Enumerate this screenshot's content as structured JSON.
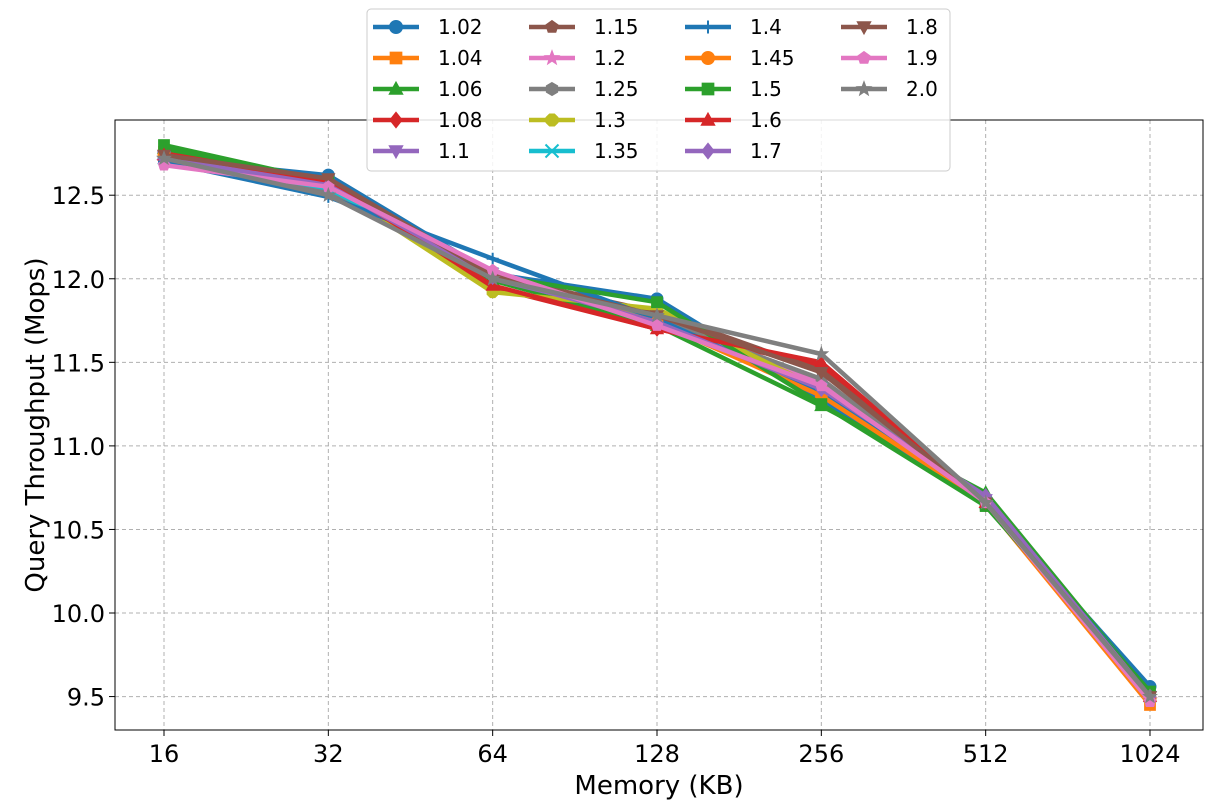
{
  "chart_data": {
    "type": "line",
    "title": "",
    "xlabel": "Memory (KB)",
    "ylabel": "Query Throughput (Mops)",
    "x_scale": "log2",
    "categories": [
      "16",
      "32",
      "64",
      "128",
      "256",
      "512",
      "1024"
    ],
    "ylim": [
      9.3,
      12.95
    ],
    "yticks": [
      "9.5",
      "10.0",
      "10.5",
      "11.0",
      "11.5",
      "12.0",
      "12.5"
    ],
    "grid": true,
    "legend_placement": "top-center",
    "legend_columns": 4,
    "series": [
      {
        "name": "1.02",
        "color": "#1f77b4",
        "marker": "circle",
        "values": [
          12.72,
          12.62,
          12.03,
          11.88,
          11.28,
          10.66,
          9.56
        ]
      },
      {
        "name": "1.04",
        "color": "#ff7f0e",
        "marker": "square",
        "values": [
          12.76,
          12.58,
          12.0,
          11.78,
          11.35,
          10.65,
          9.45
        ]
      },
      {
        "name": "1.06",
        "color": "#2ca02c",
        "marker": "triangle-up",
        "values": [
          12.78,
          12.56,
          11.99,
          11.72,
          11.24,
          10.72,
          9.52
        ]
      },
      {
        "name": "1.08",
        "color": "#d62728",
        "marker": "diamond",
        "values": [
          12.75,
          12.58,
          11.95,
          11.7,
          11.48,
          10.65,
          9.5
        ]
      },
      {
        "name": "1.1",
        "color": "#9467bd",
        "marker": "triangle-down",
        "values": [
          12.73,
          12.56,
          12.0,
          11.76,
          11.36,
          10.68,
          9.5
        ]
      },
      {
        "name": "1.15",
        "color": "#8c564b",
        "marker": "pentagon",
        "values": [
          12.72,
          12.58,
          12.02,
          11.8,
          11.45,
          10.68,
          9.49
        ]
      },
      {
        "name": "1.2",
        "color": "#e377c2",
        "marker": "star",
        "values": [
          12.7,
          12.55,
          12.03,
          11.74,
          11.38,
          10.66,
          9.48
        ]
      },
      {
        "name": "1.25",
        "color": "#7f7f7f",
        "marker": "hexagon",
        "values": [
          12.72,
          12.52,
          12.01,
          11.76,
          11.4,
          10.66,
          9.5
        ]
      },
      {
        "name": "1.3",
        "color": "#bcbd22",
        "marker": "octagon",
        "values": [
          12.74,
          12.56,
          11.92,
          11.82,
          11.34,
          10.66,
          9.5
        ]
      },
      {
        "name": "1.35",
        "color": "#17becf",
        "marker": "x",
        "values": [
          12.72,
          12.54,
          12.03,
          11.74,
          11.34,
          10.66,
          9.5
        ]
      },
      {
        "name": "1.4",
        "color": "#1f77b4",
        "marker": "plus",
        "values": [
          12.7,
          12.49,
          12.12,
          11.76,
          11.32,
          10.66,
          9.53
        ]
      },
      {
        "name": "1.45",
        "color": "#ff7f0e",
        "marker": "circle",
        "values": [
          12.74,
          12.58,
          12.02,
          11.74,
          11.3,
          10.66,
          9.48
        ]
      },
      {
        "name": "1.5",
        "color": "#2ca02c",
        "marker": "square",
        "values": [
          12.8,
          12.58,
          12.02,
          11.86,
          11.25,
          10.64,
          9.53
        ]
      },
      {
        "name": "1.6",
        "color": "#d62728",
        "marker": "triangle-up",
        "values": [
          12.74,
          12.58,
          11.96,
          11.7,
          11.5,
          10.66,
          9.5
        ]
      },
      {
        "name": "1.7",
        "color": "#9467bd",
        "marker": "diamond",
        "values": [
          12.72,
          12.56,
          12.01,
          11.74,
          11.34,
          10.7,
          9.5
        ]
      },
      {
        "name": "1.8",
        "color": "#8c564b",
        "marker": "triangle-down",
        "values": [
          12.74,
          12.6,
          12.02,
          11.78,
          11.44,
          10.66,
          9.5
        ]
      },
      {
        "name": "1.9",
        "color": "#e377c2",
        "marker": "pentagon",
        "values": [
          12.68,
          12.55,
          12.05,
          11.72,
          11.36,
          10.66,
          9.47
        ]
      },
      {
        "name": "2.0",
        "color": "#7f7f7f",
        "marker": "star",
        "values": [
          12.72,
          12.5,
          12.0,
          11.78,
          11.55,
          10.66,
          9.5
        ]
      }
    ]
  }
}
